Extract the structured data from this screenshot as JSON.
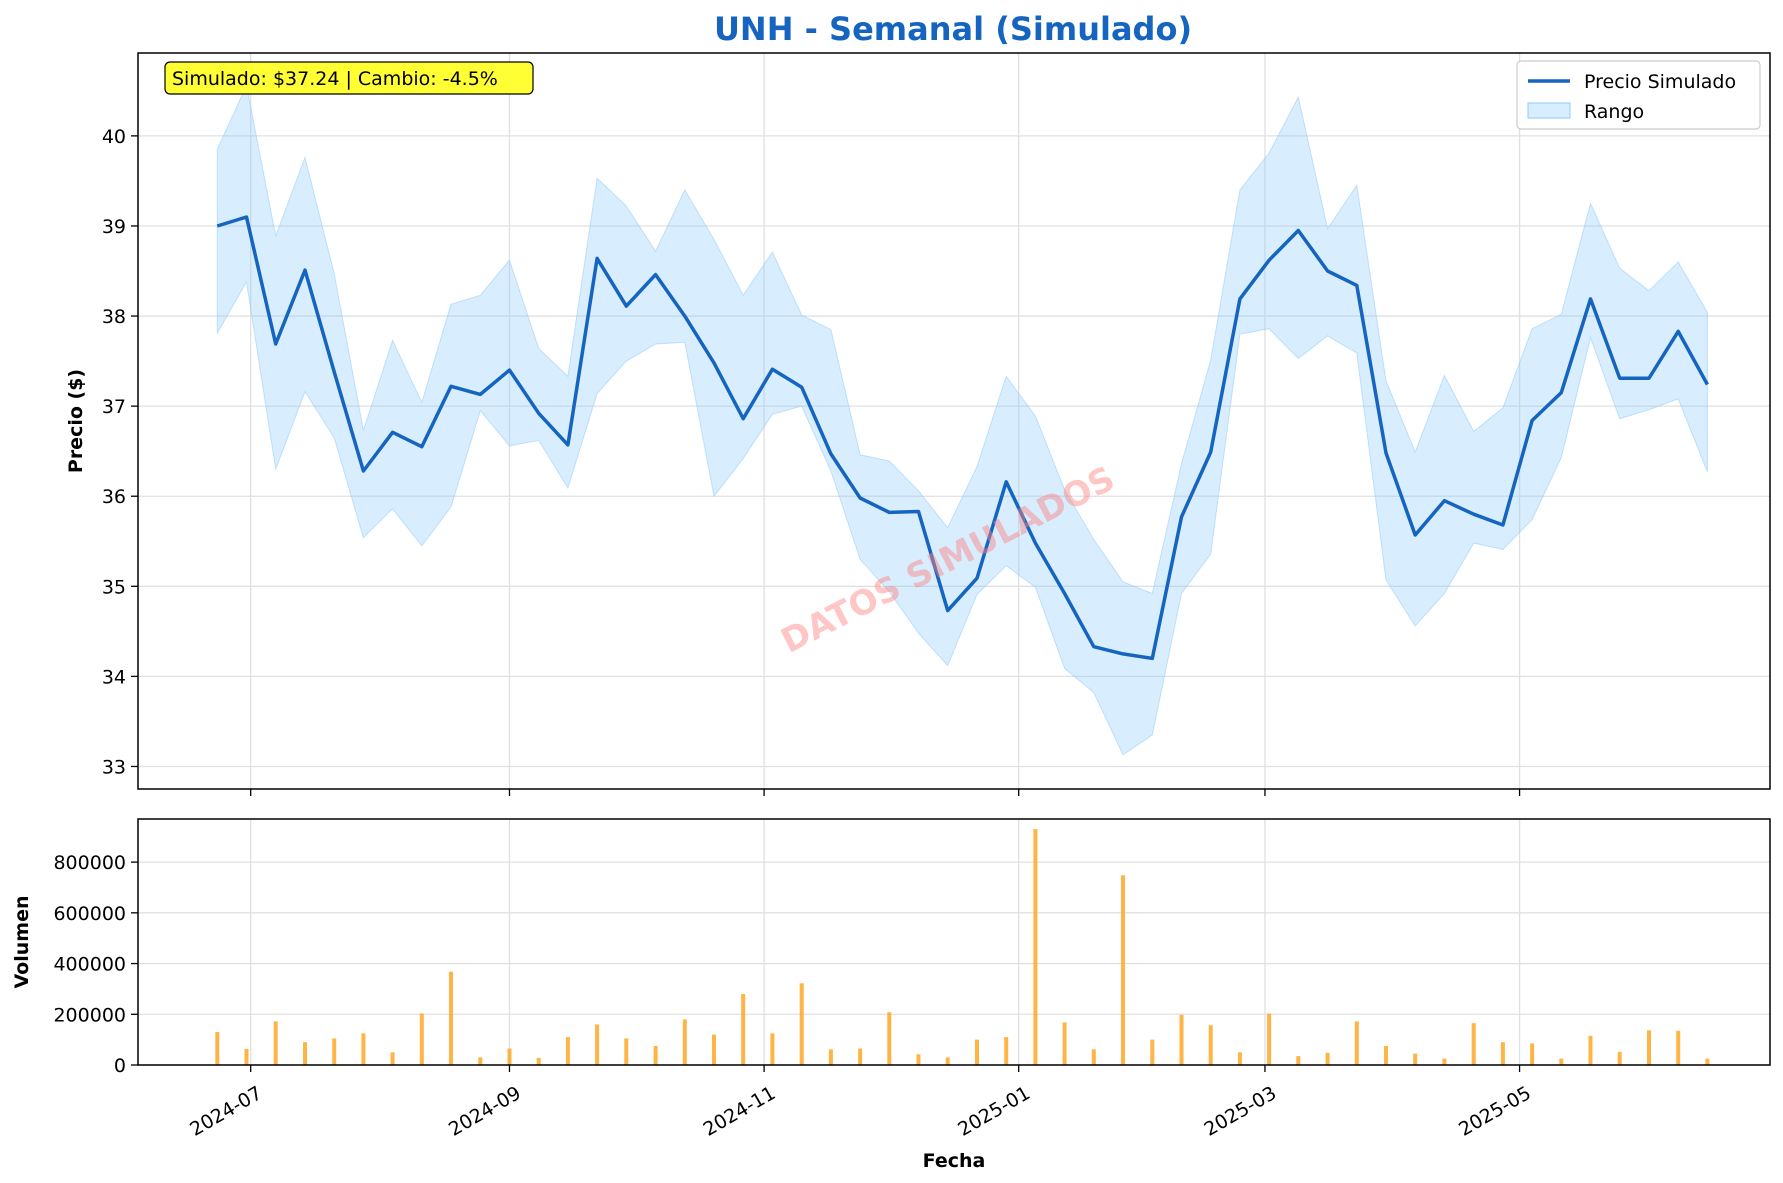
{
  "colors": {
    "title": "#1565c0",
    "price_line": "#1565c0",
    "range_fill": "#90caf9",
    "volume_bar": "#ffa726",
    "annotation_bg": "#ffff33",
    "watermark": "#ff8080",
    "grid": "#e0e0e0"
  },
  "chart_data": [
    {
      "type": "line",
      "title": "UNH - Semanal (Simulado)",
      "xlabel": "",
      "ylabel": "Precio ($)",
      "ylim": [
        32.75,
        40.92
      ],
      "yticks": [
        33,
        34,
        35,
        36,
        37,
        38,
        39,
        40
      ],
      "x_ticks": [
        "2024-07",
        "2024-09",
        "2024-11",
        "2025-01",
        "2025-03",
        "2025-05"
      ],
      "x_tick_dates": [
        "2024-07-01",
        "2024-09-01",
        "2024-11-01",
        "2025-01-01",
        "2025-03-01",
        "2025-05-01"
      ],
      "xlim": [
        "2024-06-04",
        "2025-06-30"
      ],
      "grid": true,
      "legend_position": "top-right",
      "annotation": "Simulado: $37.24 | Cambio: -4.5%",
      "watermark": "DATOS SIMULADOS",
      "x": [
        "2024-06-23",
        "2024-06-30",
        "2024-07-07",
        "2024-07-14",
        "2024-07-21",
        "2024-07-28",
        "2024-08-04",
        "2024-08-11",
        "2024-08-18",
        "2024-08-25",
        "2024-09-01",
        "2024-09-08",
        "2024-09-15",
        "2024-09-22",
        "2024-09-29",
        "2024-10-06",
        "2024-10-13",
        "2024-10-20",
        "2024-10-27",
        "2024-11-03",
        "2024-11-10",
        "2024-11-17",
        "2024-11-24",
        "2024-12-01",
        "2024-12-08",
        "2024-12-15",
        "2024-12-22",
        "2024-12-29",
        "2025-01-05",
        "2025-01-12",
        "2025-01-19",
        "2025-01-26",
        "2025-02-02",
        "2025-02-09",
        "2025-02-16",
        "2025-02-23",
        "2025-03-02",
        "2025-03-09",
        "2025-03-16",
        "2025-03-23",
        "2025-03-30",
        "2025-04-06",
        "2025-04-13",
        "2025-04-20",
        "2025-04-27",
        "2025-05-04",
        "2025-05-11",
        "2025-05-18",
        "2025-05-25",
        "2025-06-01",
        "2025-06-08",
        "2025-06-15"
      ],
      "series": [
        {
          "name": "Precio Simulado",
          "values": [
            39.0,
            39.1,
            37.69,
            38.51,
            37.38,
            36.28,
            36.71,
            36.55,
            37.22,
            37.13,
            37.4,
            36.92,
            36.57,
            38.64,
            38.11,
            38.46,
            38.0,
            37.48,
            36.86,
            37.41,
            37.21,
            36.47,
            35.98,
            35.82,
            35.83,
            34.73,
            35.09,
            36.16,
            35.48,
            34.92,
            34.33,
            34.25,
            34.2,
            35.77,
            36.49,
            38.19,
            38.62,
            38.95,
            38.5,
            38.34,
            36.48,
            35.57,
            35.95,
            35.8,
            35.68,
            36.84,
            37.15,
            38.19,
            37.31,
            37.31,
            37.83,
            37.24
          ]
        },
        {
          "name": "Rango",
          "high": [
            39.85,
            40.56,
            38.89,
            39.76,
            38.47,
            36.73,
            37.73,
            37.04,
            38.13,
            38.23,
            38.62,
            37.64,
            37.33,
            39.53,
            39.22,
            38.72,
            39.4,
            38.85,
            38.23,
            38.71,
            38.01,
            37.85,
            36.46,
            36.39,
            36.06,
            35.65,
            36.33,
            37.33,
            36.89,
            36.07,
            35.52,
            35.05,
            34.92,
            36.36,
            37.51,
            39.4,
            39.81,
            40.43,
            38.97,
            39.45,
            37.28,
            36.49,
            37.34,
            36.72,
            36.98,
            37.86,
            38.02,
            39.25,
            38.53,
            38.28,
            38.6,
            38.04
          ],
          "low": [
            37.81,
            38.38,
            36.3,
            37.16,
            36.65,
            35.54,
            35.86,
            35.45,
            35.88,
            36.95,
            36.56,
            36.62,
            36.09,
            37.14,
            37.5,
            37.69,
            37.71,
            36.0,
            36.42,
            36.91,
            37.0,
            36.28,
            35.3,
            34.94,
            34.48,
            34.12,
            34.91,
            35.23,
            34.99,
            34.09,
            33.82,
            33.13,
            33.35,
            34.92,
            35.36,
            37.8,
            37.86,
            37.53,
            37.78,
            37.59,
            35.07,
            34.56,
            34.92,
            35.48,
            35.41,
            35.74,
            36.43,
            37.76,
            36.86,
            36.96,
            37.08,
            36.27
          ]
        }
      ]
    },
    {
      "type": "bar",
      "title": "",
      "xlabel": "Fecha",
      "ylabel": "Volumen",
      "ylim": [
        0,
        970000
      ],
      "yticks": [
        0,
        200000,
        400000,
        600000,
        800000
      ],
      "grid": true,
      "x_ticks": [
        "2024-07",
        "2024-09",
        "2024-11",
        "2025-01",
        "2025-03",
        "2025-05"
      ],
      "values": [
        130000,
        63000,
        172000,
        90000,
        105000,
        125000,
        50000,
        203000,
        368000,
        30000,
        65000,
        28000,
        110000,
        160000,
        105000,
        75000,
        180000,
        120000,
        280000,
        125000,
        322000,
        62000,
        65000,
        208000,
        42000,
        30000,
        100000,
        110000,
        930000,
        168000,
        62000,
        748000,
        100000,
        198000,
        157000,
        50000,
        203000,
        35000,
        48000,
        172000,
        75000,
        45000,
        25000,
        165000,
        90000,
        85000,
        25000,
        115000,
        52000,
        137000,
        135000,
        25000
      ]
    }
  ]
}
